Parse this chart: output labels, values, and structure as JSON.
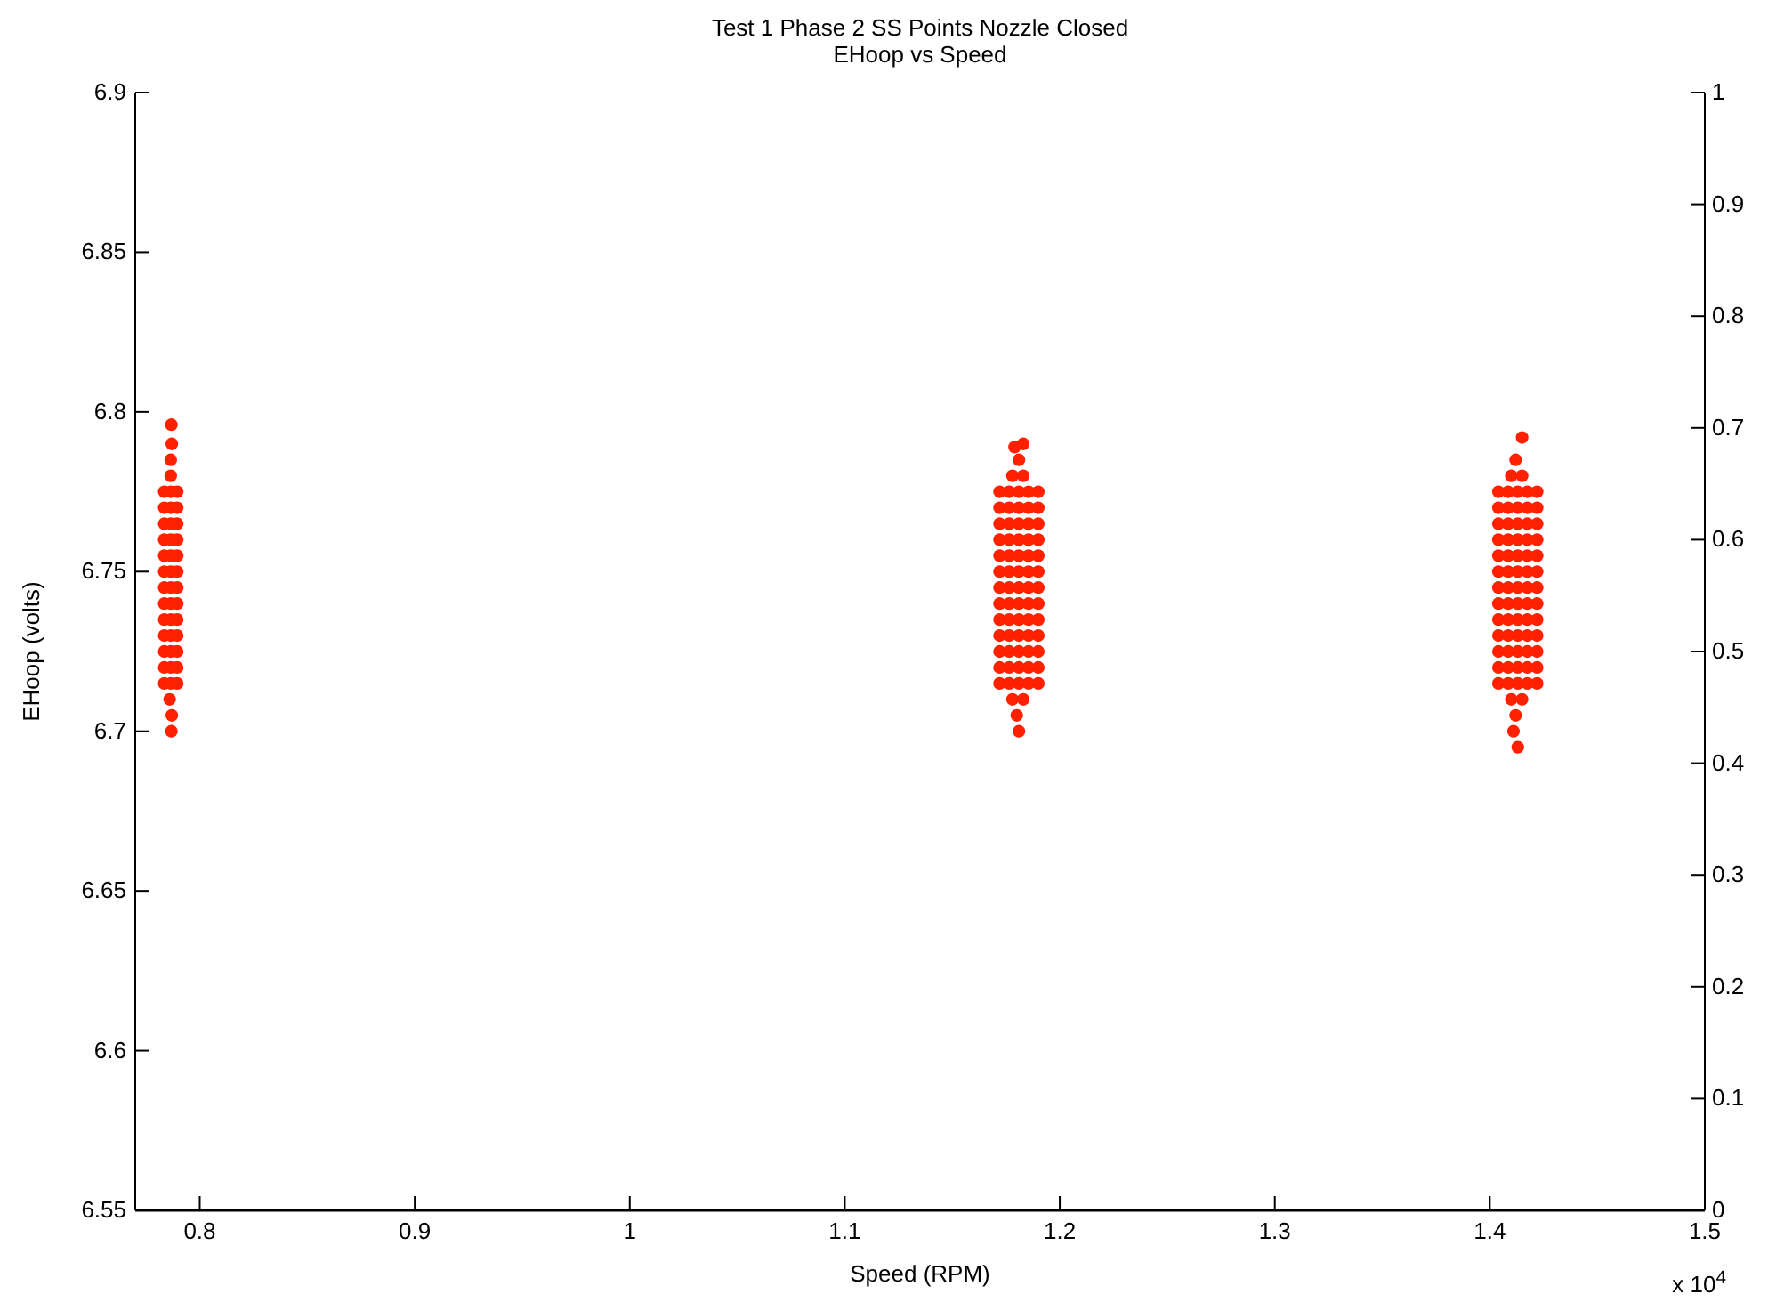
{
  "chart_data": {
    "type": "scatter",
    "title": "Test 1 Phase 2 SS Points Nozzle Closed",
    "subtitle": "EHoop vs Speed",
    "xlabel": "Speed (RPM)",
    "ylabel": "EHoop (volts)",
    "annotations": [
      "x 10$^{4}$"
    ],
    "xlim": [
      0.77,
      1.5
    ],
    "xticks": [
      0.8,
      0.9,
      1,
      1.1,
      1.2,
      1.3,
      1.4,
      1.5
    ],
    "ylim": [
      6.55,
      6.9
    ],
    "yticks": [
      6.55,
      6.6,
      6.65,
      6.7,
      6.75,
      6.8,
      6.85,
      6.9
    ],
    "y2lim": [
      0,
      1
    ],
    "y2ticks": [
      0,
      0.1,
      0.2,
      0.3,
      0.4,
      0.5,
      0.6,
      0.7,
      0.8,
      0.9,
      1
    ],
    "grid": false,
    "marker": "circle",
    "series": [
      {
        "color": "#ff2000",
        "x": [
          0.7835,
          0.7835,
          0.7835,
          0.7835,
          0.7835,
          0.7835,
          0.7835,
          0.7835,
          0.7835,
          0.7835,
          0.7835,
          0.7835,
          0.7835,
          0.7865,
          0.7865,
          0.7865,
          0.7865,
          0.7865,
          0.7865,
          0.7865,
          0.7865,
          0.7865,
          0.7865,
          0.7865,
          0.7865,
          0.7865,
          0.7895,
          0.7895,
          0.7895,
          0.7895,
          0.7895,
          0.7895,
          0.7895,
          0.7895,
          0.7895,
          0.7895,
          0.7895,
          0.7895,
          0.7895,
          0.7865,
          0.7865,
          0.787,
          0.7868,
          0.786,
          0.787,
          0.7868,
          1.172,
          1.172,
          1.172,
          1.172,
          1.172,
          1.172,
          1.172,
          1.172,
          1.172,
          1.172,
          1.172,
          1.172,
          1.172,
          1.1765,
          1.1765,
          1.1765,
          1.1765,
          1.1765,
          1.1765,
          1.1765,
          1.1765,
          1.1765,
          1.1765,
          1.1765,
          1.1765,
          1.1765,
          1.181,
          1.181,
          1.181,
          1.181,
          1.181,
          1.181,
          1.181,
          1.181,
          1.181,
          1.181,
          1.181,
          1.181,
          1.181,
          1.1855,
          1.1855,
          1.1855,
          1.1855,
          1.1855,
          1.1855,
          1.1855,
          1.1855,
          1.1855,
          1.1855,
          1.1855,
          1.1855,
          1.1855,
          1.19,
          1.19,
          1.19,
          1.19,
          1.19,
          1.19,
          1.19,
          1.19,
          1.19,
          1.19,
          1.19,
          1.19,
          1.19,
          1.178,
          1.183,
          1.18,
          1.181,
          1.178,
          1.183,
          1.181,
          1.183,
          1.179,
          1.404,
          1.404,
          1.404,
          1.404,
          1.404,
          1.404,
          1.404,
          1.404,
          1.404,
          1.404,
          1.404,
          1.404,
          1.404,
          1.4085,
          1.4085,
          1.4085,
          1.4085,
          1.4085,
          1.4085,
          1.4085,
          1.4085,
          1.4085,
          1.4085,
          1.4085,
          1.4085,
          1.4085,
          1.413,
          1.413,
          1.413,
          1.413,
          1.413,
          1.413,
          1.413,
          1.413,
          1.413,
          1.413,
          1.413,
          1.413,
          1.413,
          1.4175,
          1.4175,
          1.4175,
          1.4175,
          1.4175,
          1.4175,
          1.4175,
          1.4175,
          1.4175,
          1.4175,
          1.4175,
          1.4175,
          1.4175,
          1.422,
          1.422,
          1.422,
          1.422,
          1.422,
          1.422,
          1.422,
          1.422,
          1.422,
          1.422,
          1.422,
          1.422,
          1.422,
          1.41,
          1.415,
          1.412,
          1.411,
          1.413,
          1.41,
          1.415,
          1.412,
          1.415
        ],
        "values": [
          6.715,
          6.72,
          6.725,
          6.73,
          6.735,
          6.74,
          6.745,
          6.75,
          6.755,
          6.76,
          6.765,
          6.77,
          6.775,
          6.715,
          6.72,
          6.725,
          6.73,
          6.735,
          6.74,
          6.745,
          6.75,
          6.755,
          6.76,
          6.765,
          6.77,
          6.775,
          6.715,
          6.72,
          6.725,
          6.73,
          6.735,
          6.74,
          6.745,
          6.75,
          6.755,
          6.76,
          6.765,
          6.77,
          6.775,
          6.78,
          6.785,
          6.79,
          6.796,
          6.71,
          6.705,
          6.7,
          6.715,
          6.72,
          6.725,
          6.73,
          6.735,
          6.74,
          6.745,
          6.75,
          6.755,
          6.76,
          6.765,
          6.77,
          6.775,
          6.715,
          6.72,
          6.725,
          6.73,
          6.735,
          6.74,
          6.745,
          6.75,
          6.755,
          6.76,
          6.765,
          6.77,
          6.775,
          6.715,
          6.72,
          6.725,
          6.73,
          6.735,
          6.74,
          6.745,
          6.75,
          6.755,
          6.76,
          6.765,
          6.77,
          6.775,
          6.715,
          6.72,
          6.725,
          6.73,
          6.735,
          6.74,
          6.745,
          6.75,
          6.755,
          6.76,
          6.765,
          6.77,
          6.775,
          6.715,
          6.72,
          6.725,
          6.73,
          6.735,
          6.74,
          6.745,
          6.75,
          6.755,
          6.76,
          6.765,
          6.77,
          6.775,
          6.71,
          6.71,
          6.705,
          6.7,
          6.78,
          6.78,
          6.785,
          6.79,
          6.789,
          6.715,
          6.72,
          6.725,
          6.73,
          6.735,
          6.74,
          6.745,
          6.75,
          6.755,
          6.76,
          6.765,
          6.77,
          6.775,
          6.715,
          6.72,
          6.725,
          6.73,
          6.735,
          6.74,
          6.745,
          6.75,
          6.755,
          6.76,
          6.765,
          6.77,
          6.775,
          6.715,
          6.72,
          6.725,
          6.73,
          6.735,
          6.74,
          6.745,
          6.75,
          6.755,
          6.76,
          6.765,
          6.77,
          6.775,
          6.715,
          6.72,
          6.725,
          6.73,
          6.735,
          6.74,
          6.745,
          6.75,
          6.755,
          6.76,
          6.765,
          6.77,
          6.775,
          6.715,
          6.72,
          6.725,
          6.73,
          6.735,
          6.74,
          6.745,
          6.75,
          6.755,
          6.76,
          6.765,
          6.77,
          6.775,
          6.71,
          6.71,
          6.705,
          6.7,
          6.695,
          6.78,
          6.78,
          6.785,
          6.792
        ]
      }
    ]
  }
}
